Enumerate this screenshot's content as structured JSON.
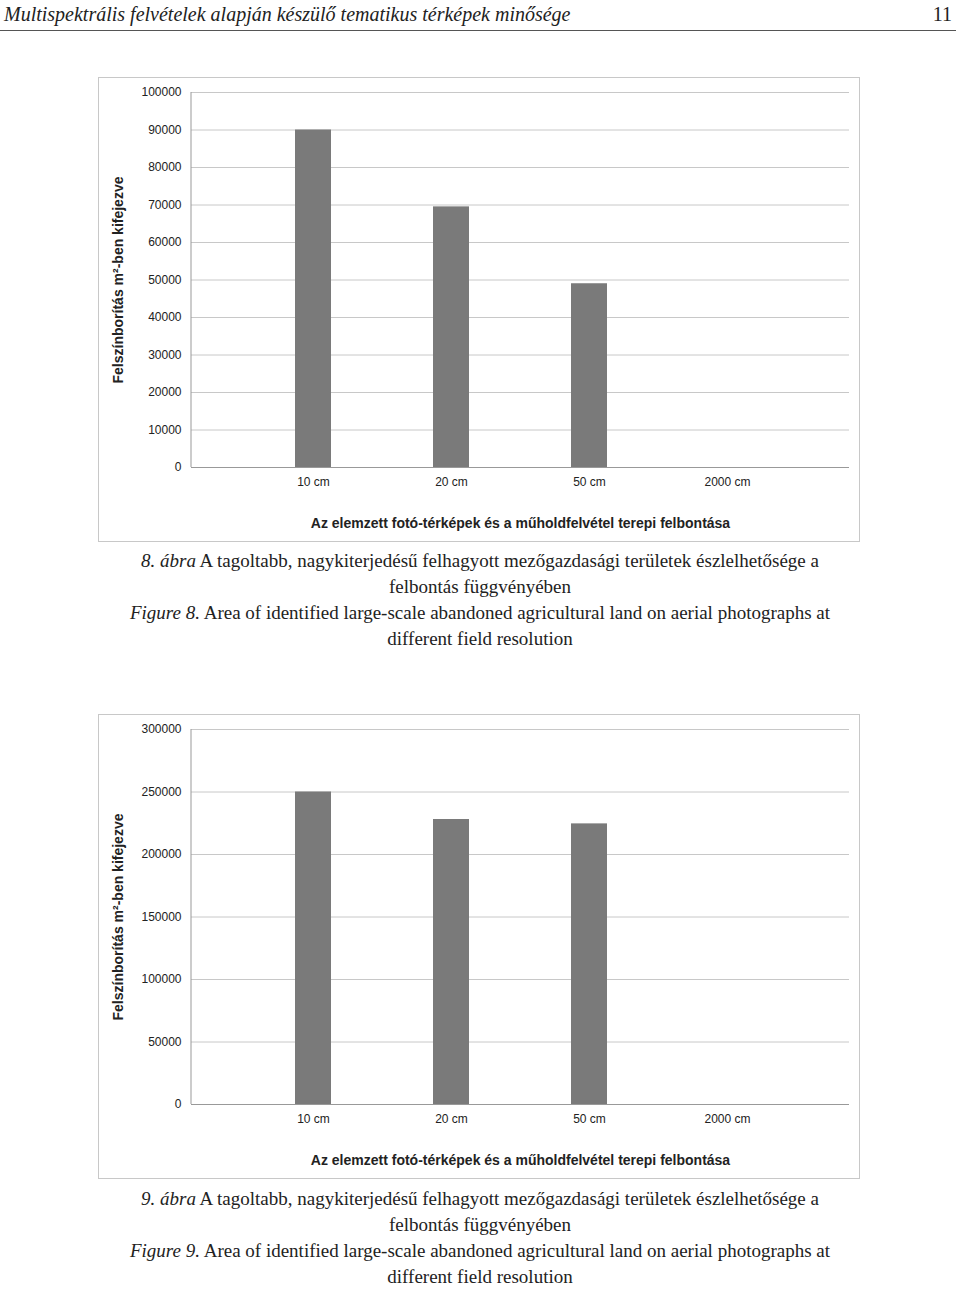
{
  "header": {
    "title": "Multispektrális felvételek alapján készülő tematikus térképek minősége",
    "page_number": "11"
  },
  "chart_data": [
    {
      "type": "bar",
      "categories": [
        "10 cm",
        "20 cm",
        "50 cm",
        "2000 cm"
      ],
      "values": [
        90000,
        69500,
        49000,
        0
      ],
      "color": "#7a7a7a",
      "xlabel": "Az elemzett fotó-térképek és a műholdfelvétel terepi felbontása",
      "ylabel": "Felszínborítás m²-ben kifejezve",
      "ylim": [
        0,
        100000
      ],
      "yticks": [
        0,
        10000,
        20000,
        30000,
        40000,
        50000,
        60000,
        70000,
        80000,
        90000,
        100000
      ],
      "grid": true
    },
    {
      "type": "bar",
      "categories": [
        "10 cm",
        "20 cm",
        "50 cm",
        "2000 cm"
      ],
      "values": [
        250000,
        228000,
        224500,
        0
      ],
      "color": "#7a7a7a",
      "xlabel": "Az elemzett fotó-térképek és a műholdfelvétel terepi felbontása",
      "ylabel": "Felszínborítás m²-ben kifejezve",
      "ylim": [
        0,
        300000
      ],
      "yticks": [
        0,
        50000,
        100000,
        150000,
        200000,
        250000,
        300000
      ],
      "grid": true
    }
  ],
  "captions": [
    {
      "label_hu": "8. ábra",
      "text_hu": "A tagoltabb, nagykiterjedésű felhagyott mezőgazdasági területek észlelhetősége a felbontás függvényében",
      "label_en": "Figure 8.",
      "text_en": "Area of identified large-scale abandoned agricultural land on aerial photographs at different field resolution"
    },
    {
      "label_hu": "9. ábra",
      "text_hu": "A tagoltabb, nagykiterjedésű felhagyott mezőgazdasági területek észlelhetősége a felbontás függvényében",
      "label_en": "Figure 9.",
      "text_en": "Area of identified large-scale abandoned agricultural land on aerial photographs at different field resolution"
    }
  ]
}
